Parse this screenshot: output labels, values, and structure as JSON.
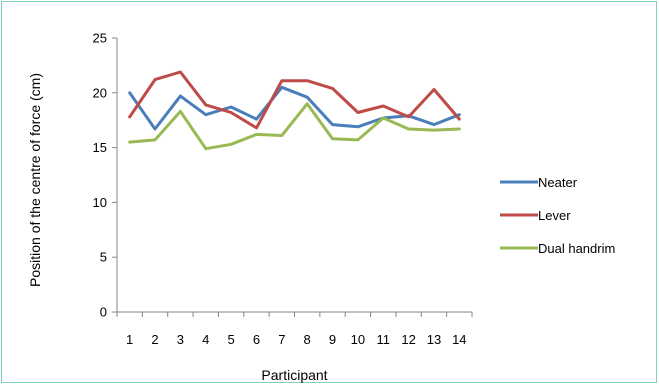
{
  "chart_data": {
    "type": "line",
    "title": "",
    "xlabel": "Participant",
    "ylabel": "Position of the centre of force (cm)",
    "categories": [
      "1",
      "2",
      "3",
      "4",
      "5",
      "6",
      "7",
      "8",
      "9",
      "10",
      "11",
      "12",
      "13",
      "14"
    ],
    "ylim": [
      0,
      25
    ],
    "yticks": [
      "0",
      "5",
      "10",
      "15",
      "20",
      "25"
    ],
    "grid": false,
    "legend_position": "right",
    "series": [
      {
        "name": "Neater",
        "color": "#4a7ebb",
        "values": [
          20.0,
          16.7,
          19.7,
          18.0,
          18.7,
          17.6,
          20.5,
          19.6,
          17.1,
          16.9,
          17.7,
          17.9,
          17.1,
          18.0
        ]
      },
      {
        "name": "Lever",
        "color": "#be4b48",
        "values": [
          17.8,
          21.2,
          21.9,
          18.9,
          18.2,
          16.8,
          21.1,
          21.1,
          20.4,
          18.2,
          18.8,
          17.8,
          20.3,
          17.6
        ]
      },
      {
        "name": "Dual handrim",
        "color": "#98b954",
        "values": [
          15.5,
          15.7,
          18.3,
          14.9,
          15.3,
          16.2,
          16.1,
          19.0,
          15.8,
          15.7,
          17.7,
          16.7,
          16.6,
          16.7
        ]
      }
    ]
  }
}
